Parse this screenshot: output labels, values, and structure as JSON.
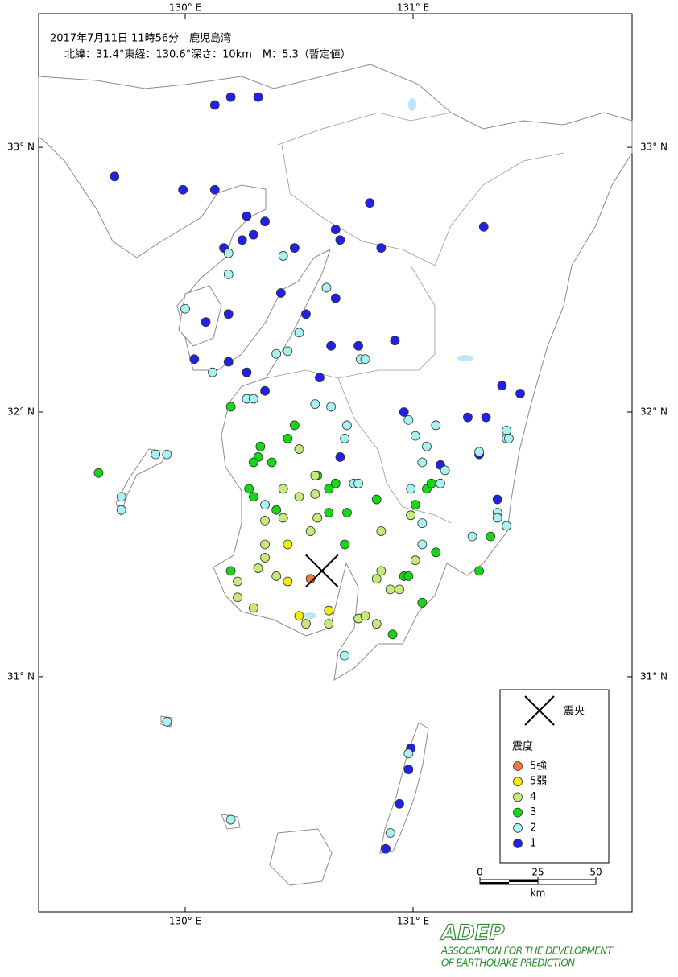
{
  "map": {
    "title": "2017年7月11日 11時56分　鹿児島湾",
    "subtitle": "北緯：31.4°東経：130.6°深さ：10km　M：5.3（暫定値）",
    "xlim": [
      129.357,
      131.961
    ],
    "ylim": [
      30.112,
      33.505
    ],
    "xticks": [
      {
        "value": 130,
        "label": "130° E"
      },
      {
        "value": 131,
        "label": "131° E"
      }
    ],
    "yticks": [
      {
        "value": 33,
        "label": "33° N"
      },
      {
        "value": 32,
        "label": "32° N"
      },
      {
        "value": 31,
        "label": "31° N"
      }
    ],
    "epicenter": {
      "lon": 130.6,
      "lat": 31.4
    },
    "legend": {
      "epicenter_label": "震央",
      "title": "震度",
      "items": [
        {
          "label": "5強",
          "color": "#f07a3a"
        },
        {
          "label": "5弱",
          "color": "#f2ee0c"
        },
        {
          "label": "4",
          "color": "#c6ea78"
        },
        {
          "label": "3",
          "color": "#14d814"
        },
        {
          "label": "2",
          "color": "#a8f2f2"
        },
        {
          "label": "1",
          "color": "#2222e6"
        }
      ]
    },
    "scale": {
      "ticks": [
        0,
        25,
        50
      ],
      "unit": "km"
    },
    "stations": {
      "lon": [
        130.13,
        130.2,
        130.32,
        129.69,
        129.99,
        130.13,
        130.27,
        130.35,
        130.3,
        130.25,
        130.17,
        130.81,
        130.66,
        130.68,
        130.86,
        131.31,
        130.48,
        130.42,
        130.66,
        130.53,
        130.19,
        130.09,
        130.64,
        130.76,
        130.92,
        130.04,
        130.19,
        130.27,
        130.35,
        130.59,
        131.39,
        131.47,
        130.96,
        131.24,
        131.32,
        131.29,
        131.12,
        130.68,
        131.37,
        130.99,
        130.98,
        130.94,
        130.88,
        130.0,
        130.19,
        130.19,
        130.43,
        130.62,
        130.5,
        130.45,
        130.4,
        130.12,
        130.27,
        130.3,
        130.57,
        130.64,
        130.77,
        130.79,
        130.71,
        130.7,
        129.87,
        129.92,
        129.72,
        129.72,
        130.98,
        131.01,
        131.1,
        131.06,
        131.04,
        131.14,
        131.29,
        131.41,
        131.41,
        131.42,
        130.99,
        131.12,
        130.74,
        130.76,
        130.35,
        130.99,
        131.04,
        131.37,
        131.37,
        131.41,
        131.26,
        131.04,
        130.7,
        129.92,
        130.2,
        130.98,
        130.9,
        130.2,
        130.48,
        130.33,
        130.32,
        130.3,
        130.45,
        130.38,
        130.58,
        130.28,
        130.3,
        130.4,
        130.63,
        130.66,
        130.63,
        130.71,
        130.84,
        131.06,
        131.08,
        131.01,
        131.34,
        130.7,
        131.1,
        130.2,
        130.96,
        130.98,
        131.29,
        131.04,
        130.91,
        129.62,
        130.5,
        130.57,
        130.43,
        130.57,
        130.5,
        130.58,
        130.43,
        130.35,
        130.55,
        130.86,
        130.35,
        130.35,
        130.32,
        130.4,
        130.23,
        130.23,
        130.3,
        130.86,
        130.84,
        130.9,
        130.94,
        130.99,
        131.01,
        130.53,
        130.63,
        130.76,
        130.79,
        130.84,
        130.45,
        130.45,
        130.5,
        130.63,
        130.55
      ],
      "lat": [
        33.16,
        33.19,
        33.19,
        32.89,
        32.84,
        32.84,
        32.74,
        32.72,
        32.67,
        32.65,
        32.62,
        32.79,
        32.69,
        32.65,
        32.62,
        32.7,
        32.62,
        32.45,
        32.43,
        32.37,
        32.37,
        32.34,
        32.25,
        32.25,
        32.27,
        32.2,
        32.19,
        32.15,
        32.08,
        32.13,
        32.1,
        32.07,
        32.0,
        31.98,
        31.98,
        31.84,
        31.8,
        31.83,
        31.67,
        30.73,
        30.65,
        30.52,
        30.35,
        32.39,
        32.6,
        32.52,
        32.59,
        32.47,
        32.3,
        32.23,
        32.22,
        32.15,
        32.05,
        32.05,
        32.03,
        32.02,
        32.2,
        32.2,
        31.95,
        31.9,
        31.84,
        31.84,
        31.68,
        31.63,
        31.97,
        31.91,
        31.95,
        31.87,
        31.81,
        31.78,
        31.85,
        31.93,
        31.9,
        31.9,
        31.71,
        31.73,
        31.73,
        31.73,
        31.65,
        31.61,
        31.58,
        31.62,
        31.6,
        31.57,
        31.53,
        31.5,
        31.08,
        30.83,
        30.46,
        30.71,
        30.41,
        32.02,
        31.95,
        31.87,
        31.83,
        31.81,
        31.9,
        31.81,
        31.76,
        31.71,
        31.68,
        31.63,
        31.71,
        31.73,
        31.62,
        31.62,
        31.67,
        31.71,
        31.73,
        31.65,
        31.53,
        31.5,
        31.47,
        31.4,
        31.38,
        31.38,
        31.4,
        31.28,
        31.16,
        31.77,
        31.86,
        31.76,
        31.71,
        31.69,
        31.68,
        31.6,
        31.6,
        31.59,
        31.55,
        31.55,
        31.5,
        31.45,
        31.41,
        31.38,
        31.36,
        31.3,
        31.26,
        31.4,
        31.37,
        31.33,
        31.33,
        31.61,
        31.44,
        31.2,
        31.2,
        31.22,
        31.23,
        31.2,
        31.5,
        31.36,
        31.23,
        31.25,
        31.37
      ],
      "intensity": [
        "1",
        "1",
        "1",
        "1",
        "1",
        "1",
        "1",
        "1",
        "1",
        "1",
        "1",
        "1",
        "1",
        "1",
        "1",
        "1",
        "1",
        "1",
        "1",
        "1",
        "1",
        "1",
        "1",
        "1",
        "1",
        "1",
        "1",
        "1",
        "1",
        "1",
        "1",
        "1",
        "1",
        "1",
        "1",
        "1",
        "1",
        "1",
        "1",
        "1",
        "1",
        "1",
        "1",
        "2",
        "2",
        "2",
        "2",
        "2",
        "2",
        "2",
        "2",
        "2",
        "2",
        "2",
        "2",
        "2",
        "2",
        "2",
        "2",
        "2",
        "2",
        "2",
        "2",
        "2",
        "2",
        "2",
        "2",
        "2",
        "2",
        "2",
        "2",
        "2",
        "2",
        "2",
        "2",
        "2",
        "2",
        "2",
        "2",
        "2",
        "2",
        "2",
        "2",
        "2",
        "2",
        "2",
        "2",
        "2",
        "2",
        "2",
        "2",
        "3",
        "3",
        "3",
        "3",
        "3",
        "3",
        "3",
        "3",
        "3",
        "3",
        "3",
        "3",
        "3",
        "3",
        "3",
        "3",
        "3",
        "3",
        "3",
        "3",
        "3",
        "3",
        "3",
        "3",
        "3",
        "3",
        "3",
        "3",
        "3",
        "4",
        "4",
        "4",
        "4",
        "4",
        "4",
        "4",
        "4",
        "4",
        "4",
        "4",
        "4",
        "4",
        "4",
        "4",
        "4",
        "4",
        "4",
        "4",
        "4",
        "4",
        "4",
        "4",
        "4",
        "4",
        "4",
        "4",
        "4",
        "5弱",
        "5弱",
        "5弱",
        "5弱",
        "5強"
      ]
    }
  },
  "footer": {
    "logo": "ADEP",
    "line1": "ASSOCIATION FOR THE DEVELOPMENT",
    "line2": "OF EARTHQUAKE PREDICTION"
  }
}
